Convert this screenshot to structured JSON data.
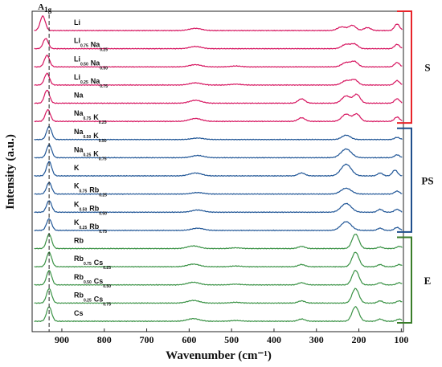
{
  "chart_data": {
    "type": "line",
    "title": "",
    "xlabel": "Wavenumber (cm⁻¹)",
    "ylabel": "Intensity (a.u.)",
    "x_reversed": true,
    "xlim": [
      970,
      95
    ],
    "xticks": [
      900,
      800,
      700,
      600,
      500,
      400,
      300,
      200,
      100
    ],
    "peak_marker": {
      "label": "A1g",
      "x": 930
    },
    "grid": false,
    "groups": [
      {
        "name": "S",
        "color": "#d6145f",
        "bracket_color": "#e8242a"
      },
      {
        "name": "PS",
        "color": "#1f5596",
        "bracket_color": "#1f4f8c"
      },
      {
        "name": "E",
        "color": "#3a9245",
        "bracket_color": "#3a7d2a"
      }
    ],
    "series": [
      {
        "name": "Li",
        "label_main": [
          [
            "Li",
            ""
          ]
        ],
        "group": "S",
        "peaks": [
          [
            945,
            1.0,
            6
          ],
          [
            585,
            0.15,
            14
          ],
          [
            240,
            0.25,
            10
          ],
          [
            215,
            0.35,
            8
          ],
          [
            180,
            0.2,
            8
          ],
          [
            110,
            0.45,
            6
          ]
        ]
      },
      {
        "name": "Li0.75Na0.25",
        "label_main": [
          [
            "Li",
            "0.75"
          ],
          [
            "Na",
            "0.25"
          ]
        ],
        "group": "S",
        "peaks": [
          [
            938,
            0.7,
            6
          ],
          [
            585,
            0.15,
            14
          ],
          [
            230,
            0.3,
            10
          ],
          [
            210,
            0.3,
            8
          ],
          [
            110,
            0.3,
            6
          ]
        ]
      },
      {
        "name": "Li0.50Na0.50",
        "label_main": [
          [
            "Li",
            "0.50"
          ],
          [
            "Na",
            "0.50"
          ]
        ],
        "group": "S",
        "peaks": [
          [
            935,
            0.8,
            6
          ],
          [
            585,
            0.15,
            14
          ],
          [
            490,
            0.06,
            12
          ],
          [
            230,
            0.3,
            10
          ],
          [
            210,
            0.35,
            8
          ],
          [
            110,
            0.3,
            6
          ]
        ]
      },
      {
        "name": "Li0.25Na0.75",
        "label_main": [
          [
            "Li",
            "0.25"
          ],
          [
            "Na",
            "0.75"
          ]
        ],
        "group": "S",
        "peaks": [
          [
            935,
            0.8,
            6
          ],
          [
            585,
            0.15,
            14
          ],
          [
            490,
            0.06,
            12
          ],
          [
            230,
            0.3,
            10
          ],
          [
            210,
            0.35,
            8
          ],
          [
            110,
            0.3,
            6
          ]
        ]
      },
      {
        "name": "Na",
        "label_main": [
          [
            "Na",
            ""
          ]
        ],
        "group": "S",
        "peaks": [
          [
            935,
            0.9,
            6
          ],
          [
            585,
            0.2,
            14
          ],
          [
            335,
            0.3,
            8
          ],
          [
            230,
            0.5,
            10
          ],
          [
            205,
            0.6,
            8
          ],
          [
            110,
            0.3,
            6
          ]
        ]
      },
      {
        "name": "Na0.75K0.25",
        "label_main": [
          [
            "Na",
            "0.75"
          ],
          [
            "K",
            "0.25"
          ]
        ],
        "group": "S",
        "peaks": [
          [
            933,
            0.8,
            6
          ],
          [
            585,
            0.2,
            14
          ],
          [
            335,
            0.25,
            8
          ],
          [
            230,
            0.5,
            10
          ],
          [
            205,
            0.5,
            8
          ],
          [
            110,
            0.3,
            6
          ]
        ]
      },
      {
        "name": "Na0.50K0.50",
        "label_main": [
          [
            "Na",
            "0.50"
          ],
          [
            "K",
            "0.50"
          ]
        ],
        "group": "PS",
        "peaks": [
          [
            930,
            0.9,
            6
          ],
          [
            580,
            0.1,
            14
          ],
          [
            230,
            0.3,
            10
          ],
          [
            110,
            0.15,
            6
          ]
        ]
      },
      {
        "name": "Na0.25K0.75",
        "label_main": [
          [
            "Na",
            "0.25"
          ],
          [
            "K",
            "0.75"
          ]
        ],
        "group": "PS",
        "peaks": [
          [
            930,
            0.9,
            6
          ],
          [
            580,
            0.15,
            14
          ],
          [
            230,
            0.6,
            12
          ],
          [
            110,
            0.2,
            6
          ]
        ]
      },
      {
        "name": "K",
        "label_main": [
          [
            "K",
            ""
          ]
        ],
        "group": "PS",
        "peaks": [
          [
            930,
            1.0,
            6
          ],
          [
            585,
            0.2,
            14
          ],
          [
            335,
            0.2,
            8
          ],
          [
            230,
            0.8,
            12
          ],
          [
            150,
            0.2,
            6
          ],
          [
            115,
            0.4,
            6
          ]
        ]
      },
      {
        "name": "K0.75Rb0.25",
        "label_main": [
          [
            "K",
            "0.75"
          ],
          [
            "Rb",
            "0.25"
          ]
        ],
        "group": "PS",
        "peaks": [
          [
            930,
            0.8,
            6
          ],
          [
            580,
            0.1,
            14
          ],
          [
            230,
            0.4,
            12
          ],
          [
            110,
            0.2,
            6
          ]
        ]
      },
      {
        "name": "K0.50Rb0.50",
        "label_main": [
          [
            "K",
            "0.50"
          ],
          [
            "Rb",
            "0.50"
          ]
        ],
        "group": "PS",
        "peaks": [
          [
            930,
            0.8,
            6
          ],
          [
            580,
            0.15,
            14
          ],
          [
            230,
            0.6,
            12
          ],
          [
            150,
            0.2,
            6
          ],
          [
            110,
            0.2,
            6
          ]
        ]
      },
      {
        "name": "K0.25Rb0.75",
        "label_main": [
          [
            "K",
            "0.25"
          ],
          [
            "Rb",
            "0.75"
          ]
        ],
        "group": "PS",
        "peaks": [
          [
            930,
            0.8,
            6
          ],
          [
            580,
            0.15,
            14
          ],
          [
            230,
            0.6,
            12
          ],
          [
            150,
            0.15,
            6
          ],
          [
            110,
            0.2,
            6
          ]
        ]
      },
      {
        "name": "Rb",
        "label_main": [
          [
            "Rb",
            ""
          ]
        ],
        "group": "E",
        "peaks": [
          [
            930,
            1.0,
            6
          ],
          [
            590,
            0.18,
            14
          ],
          [
            490,
            0.05,
            12
          ],
          [
            335,
            0.15,
            8
          ],
          [
            208,
            1.0,
            8
          ],
          [
            150,
            0.1,
            6
          ],
          [
            105,
            0.15,
            6
          ]
        ]
      },
      {
        "name": "Rb0.75Cs0.25",
        "label_main": [
          [
            "Rb",
            "0.75"
          ],
          [
            "Cs",
            "0.25"
          ]
        ],
        "group": "E",
        "peaks": [
          [
            930,
            1.0,
            6
          ],
          [
            590,
            0.18,
            14
          ],
          [
            490,
            0.05,
            12
          ],
          [
            335,
            0.15,
            8
          ],
          [
            208,
            1.0,
            8
          ],
          [
            150,
            0.15,
            6
          ],
          [
            105,
            0.15,
            6
          ]
        ]
      },
      {
        "name": "Rb0.50Cs0.50",
        "label_main": [
          [
            "Rb",
            "0.50"
          ],
          [
            "Cs",
            "0.50"
          ]
        ],
        "group": "E",
        "peaks": [
          [
            930,
            1.0,
            6
          ],
          [
            590,
            0.18,
            14
          ],
          [
            490,
            0.05,
            12
          ],
          [
            335,
            0.15,
            8
          ],
          [
            208,
            1.0,
            8
          ],
          [
            150,
            0.15,
            6
          ],
          [
            105,
            0.15,
            6
          ]
        ]
      },
      {
        "name": "Rb0.25Cs0.75",
        "label_main": [
          [
            "Rb",
            "0.25"
          ],
          [
            "Cs",
            "0.75"
          ]
        ],
        "group": "E",
        "peaks": [
          [
            930,
            1.0,
            6
          ],
          [
            590,
            0.18,
            14
          ],
          [
            490,
            0.05,
            12
          ],
          [
            335,
            0.15,
            8
          ],
          [
            208,
            1.0,
            8
          ],
          [
            150,
            0.15,
            6
          ],
          [
            105,
            0.15,
            6
          ]
        ]
      },
      {
        "name": "Cs",
        "label_main": [
          [
            "Cs",
            ""
          ]
        ],
        "group": "E",
        "peaks": [
          [
            930,
            1.0,
            6
          ],
          [
            590,
            0.18,
            14
          ],
          [
            490,
            0.05,
            12
          ],
          [
            335,
            0.15,
            8
          ],
          [
            208,
            1.0,
            8
          ],
          [
            150,
            0.15,
            6
          ],
          [
            105,
            0.15,
            6
          ]
        ]
      }
    ]
  }
}
